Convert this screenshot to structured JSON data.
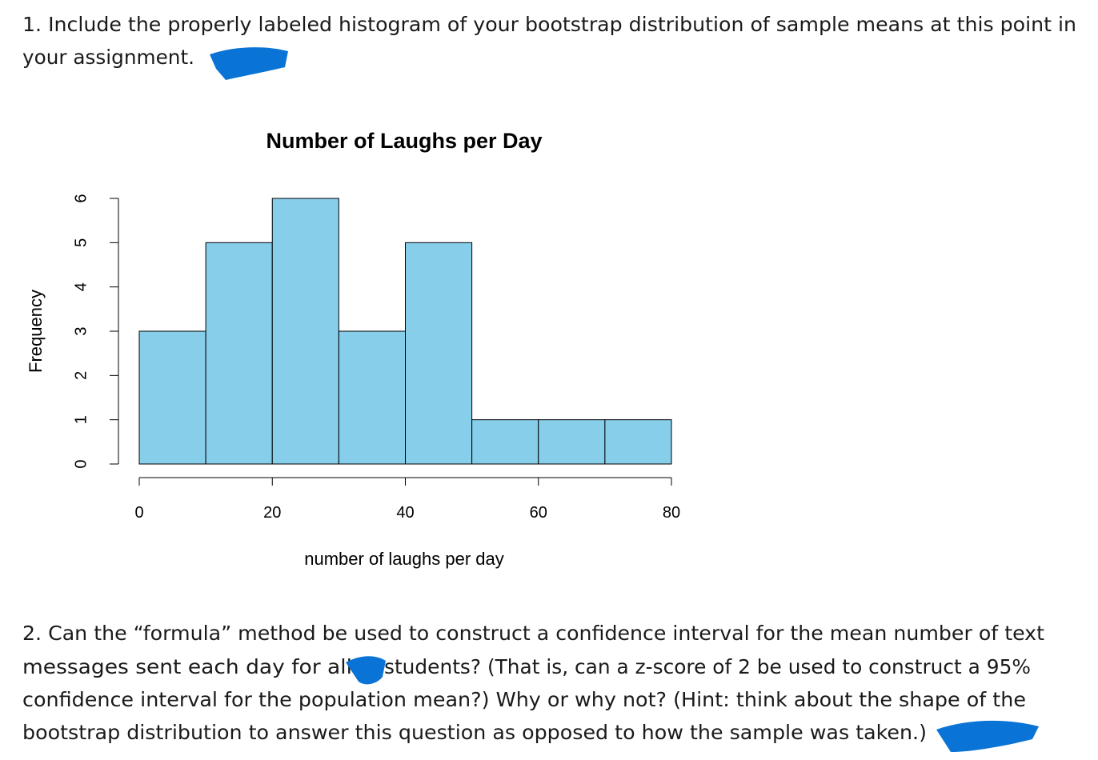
{
  "question_1": [
    "1. Include the properly labeled histogram of your bootstrap distribution of sample means at this point in",
    "your assignment."
  ],
  "chart_data": {
    "type": "histogram",
    "title": "Number of Laughs per Day",
    "x_label": "number of laughs per day",
    "y_label": "Frequency",
    "bins": [
      0,
      10,
      20,
      30,
      40,
      50,
      60,
      70,
      80
    ],
    "counts": [
      3,
      5,
      6,
      3,
      5,
      1,
      1,
      1
    ],
    "color": "#87ceeb",
    "xlim": [
      0,
      80
    ],
    "xticks": [
      0,
      20,
      40,
      60,
      80
    ],
    "ylim": [
      0,
      6
    ],
    "yticks": [
      0,
      1,
      2,
      3,
      4,
      5,
      6
    ]
  },
  "question_2": [
    "2. Can the “formula” method be used to construct a confidence interval for the mean number of text",
    "messages sent each day for all",
    "students? (That is, can a z-score of 2 be used to construct a 95%",
    "confidence interval for the population mean?) Why or why not? (Hint: think about the shape of the",
    "bootstrap distribution to answer this question as opposed to how the sample was taken.)"
  ]
}
